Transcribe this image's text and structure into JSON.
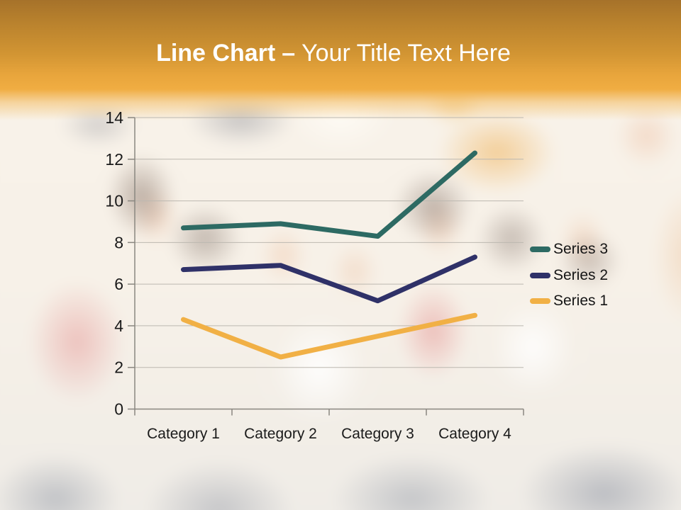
{
  "header": {
    "title_bold": "Line Chart",
    "title_separator": "–",
    "title_regular": "Your Title Text Here",
    "text_color": "#ffffff",
    "banner_top_color": "#a6722a",
    "banner_bottom_color": "#f0ad42"
  },
  "chart_data": {
    "type": "line",
    "title": "",
    "xlabel": "",
    "ylabel": "",
    "categories": [
      "Category 1",
      "Category 2",
      "Category 3",
      "Category 4"
    ],
    "series": [
      {
        "name": "Series 3",
        "color": "#2d6a63",
        "values": [
          8.7,
          8.9,
          8.3,
          12.3
        ]
      },
      {
        "name": "Series 2",
        "color": "#2f3168",
        "values": [
          6.7,
          6.9,
          5.2,
          7.3
        ]
      },
      {
        "name": "Series 1",
        "color": "#f1b045",
        "values": [
          4.3,
          2.5,
          3.5,
          4.5
        ]
      }
    ],
    "ylim": [
      0,
      14
    ],
    "yticks": [
      0,
      2,
      4,
      6,
      8,
      10,
      12,
      14
    ],
    "grid": true,
    "legend_position": "right",
    "axis_color": "#8a8780",
    "gridline_color": "#bcb8b0",
    "label_color": "#1a1a1a",
    "line_width": 7
  }
}
